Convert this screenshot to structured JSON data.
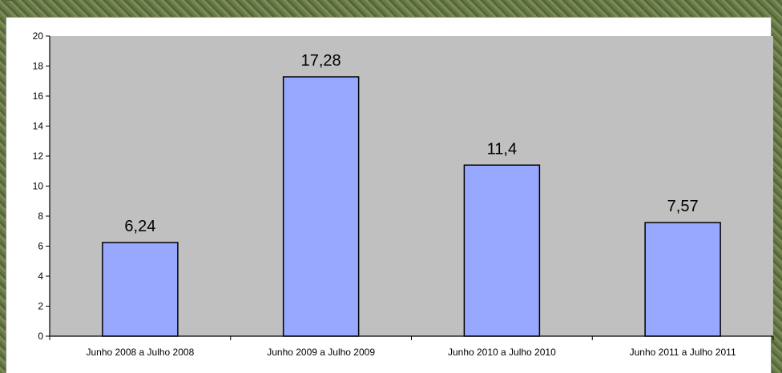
{
  "top_fragment": "...",
  "chart_data": {
    "type": "bar",
    "categories": [
      "Junho 2008 a Julho 2008",
      "Junho 2009 a Julho 2009",
      "Junho 2010 a Julho 2010",
      "Junho 2011 a Julho 2011"
    ],
    "values": [
      6.24,
      17.28,
      11.4,
      7.57
    ],
    "data_labels": [
      "6,24",
      "17,28",
      "11,4",
      "7,57"
    ],
    "y_ticks": [
      "0",
      "2",
      "4",
      "6",
      "8",
      "10",
      "12",
      "14",
      "16",
      "18",
      "20"
    ],
    "title": "",
    "xlabel": "",
    "ylabel": "",
    "ylim": [
      0,
      20
    ],
    "grid": false,
    "legend": "none",
    "colors": {
      "plot_background": "#c0c0c0",
      "bar_fill": "#99a8ff",
      "bar_stroke": "#000000"
    }
  }
}
